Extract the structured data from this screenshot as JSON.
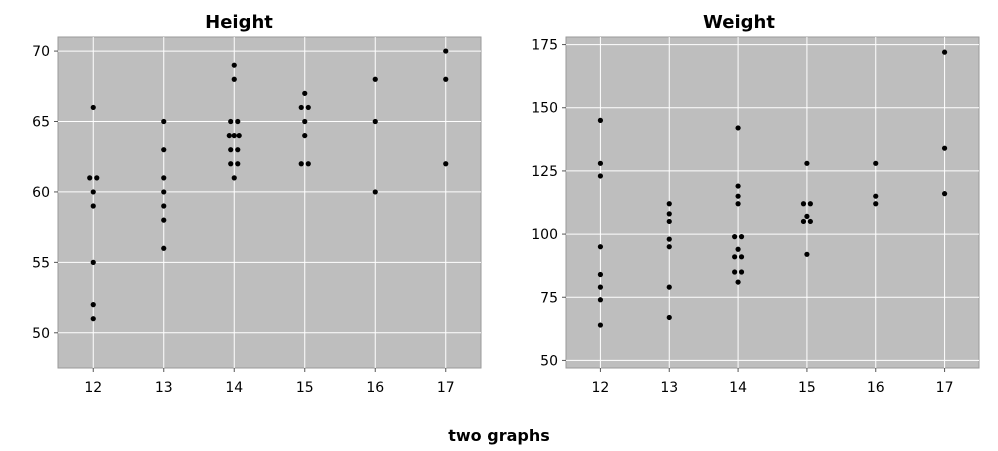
{
  "caption": "two graphs",
  "style": {
    "plot_background": "#bebebe",
    "grid_color": "#ffffff",
    "point_color": "#000000"
  },
  "chart_data": [
    {
      "type": "scatter",
      "title": "Height",
      "xlabel": "",
      "ylabel": "",
      "grid": true,
      "xlim": [
        11.5,
        17.5
      ],
      "ylim": [
        47.5,
        71
      ],
      "xticks": [
        12,
        13,
        14,
        15,
        16,
        17
      ],
      "yticks": [
        50,
        55,
        60,
        65,
        70
      ],
      "points": [
        [
          11.95,
          61
        ],
        [
          12.05,
          61
        ],
        [
          12,
          66
        ],
        [
          12,
          60
        ],
        [
          12,
          59
        ],
        [
          12,
          55
        ],
        [
          12,
          52
        ],
        [
          12,
          51
        ],
        [
          13,
          65
        ],
        [
          13,
          63
        ],
        [
          13,
          61
        ],
        [
          13,
          60
        ],
        [
          13,
          59
        ],
        [
          13,
          58
        ],
        [
          13,
          56
        ],
        [
          14,
          69
        ],
        [
          14,
          68
        ],
        [
          13.95,
          65
        ],
        [
          14.05,
          65
        ],
        [
          13.93,
          64
        ],
        [
          14,
          64
        ],
        [
          14.07,
          64
        ],
        [
          13.95,
          63
        ],
        [
          14.05,
          63
        ],
        [
          13.95,
          62
        ],
        [
          14.05,
          62
        ],
        [
          14,
          61
        ],
        [
          15,
          67
        ],
        [
          14.95,
          66
        ],
        [
          15.05,
          66
        ],
        [
          15,
          65
        ],
        [
          15,
          64
        ],
        [
          14.95,
          62
        ],
        [
          15.05,
          62
        ],
        [
          16,
          68
        ],
        [
          16,
          65
        ],
        [
          16,
          60
        ],
        [
          17,
          70
        ],
        [
          17,
          68
        ],
        [
          17,
          62
        ]
      ]
    },
    {
      "type": "scatter",
      "title": "Weight",
      "xlabel": "",
      "ylabel": "",
      "grid": true,
      "xlim": [
        11.5,
        17.5
      ],
      "ylim": [
        47,
        178
      ],
      "xticks": [
        12,
        13,
        14,
        15,
        16,
        17
      ],
      "yticks": [
        50,
        75,
        100,
        125,
        150,
        175
      ],
      "points": [
        [
          12,
          145
        ],
        [
          12,
          128
        ],
        [
          12,
          123
        ],
        [
          12,
          95
        ],
        [
          12,
          84
        ],
        [
          12,
          79
        ],
        [
          12,
          74
        ],
        [
          12,
          64
        ],
        [
          13,
          112
        ],
        [
          13,
          108
        ],
        [
          13,
          105
        ],
        [
          13,
          98
        ],
        [
          13,
          95
        ],
        [
          13,
          79
        ],
        [
          13,
          67
        ],
        [
          14,
          142
        ],
        [
          14,
          119
        ],
        [
          14,
          115
        ],
        [
          14,
          112
        ],
        [
          13.95,
          99
        ],
        [
          14.05,
          99
        ],
        [
          14,
          94
        ],
        [
          13.95,
          91
        ],
        [
          14.05,
          91
        ],
        [
          13.95,
          85
        ],
        [
          14.05,
          85
        ],
        [
          14,
          81
        ],
        [
          15,
          128
        ],
        [
          14.95,
          112
        ],
        [
          15.05,
          112
        ],
        [
          15,
          107
        ],
        [
          14.95,
          105
        ],
        [
          15.05,
          105
        ],
        [
          15,
          92
        ],
        [
          16,
          128
        ],
        [
          16,
          115
        ],
        [
          16,
          112
        ],
        [
          17,
          172
        ],
        [
          17,
          134
        ],
        [
          17,
          116
        ]
      ]
    }
  ]
}
